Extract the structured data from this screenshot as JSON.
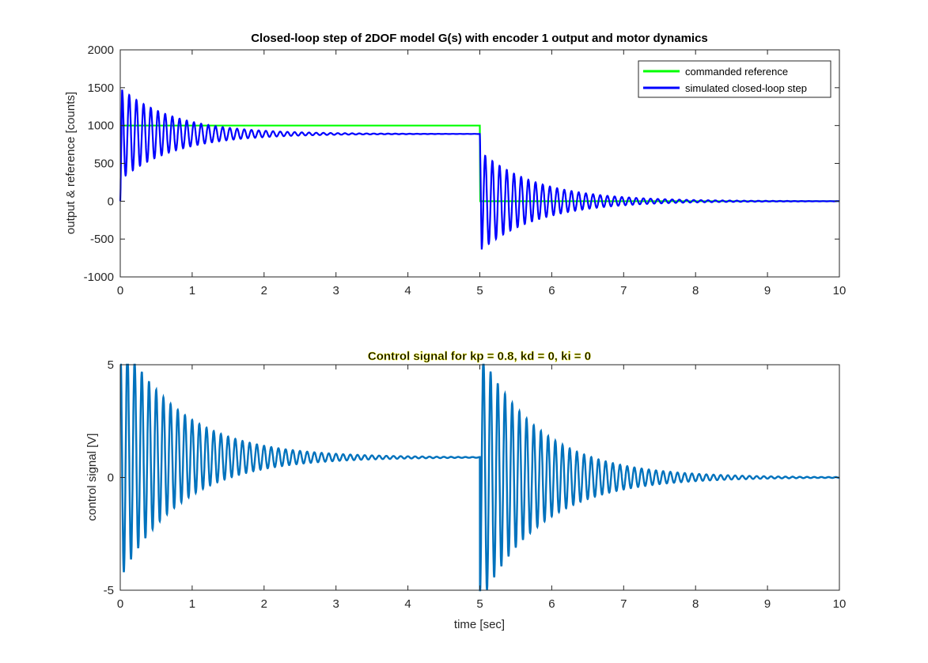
{
  "colors": {
    "reference": "#00ff00",
    "output": "#0000ff",
    "control": "#0072bd",
    "axis": "#262626",
    "legend_border": "#262626"
  },
  "chart_data": [
    {
      "type": "line",
      "title": "Closed-loop step of 2DOF model G(s) with encoder 1 output and motor dynamics",
      "xlabel": "",
      "ylabel": "output & reference [counts]",
      "xlim": [
        0,
        10
      ],
      "ylim": [
        -1000,
        2000
      ],
      "xticks": [
        "0",
        "1",
        "2",
        "3",
        "4",
        "5",
        "6",
        "7",
        "8",
        "9",
        "10"
      ],
      "yticks": [
        "-1000",
        "-500",
        "0",
        "500",
        "1000",
        "1500",
        "2000"
      ],
      "grid": false,
      "legend_position": "top-right",
      "series": [
        {
          "name": "commanded reference",
          "color": "#00ff00",
          "points": [
            [
              0,
              1000
            ],
            [
              5.0,
              1000
            ],
            [
              5.005,
              0
            ],
            [
              10,
              0
            ]
          ]
        },
        {
          "name": "simulated closed-loop step",
          "color": "#0000ff",
          "model": {
            "segments": [
              {
                "t_start": 0,
                "t_end": 5,
                "initial": 0,
                "final": 889,
                "peak": 1520,
                "trough": 305,
                "period": 0.1,
                "decay_time": 0.75
              },
              {
                "t_start": 5,
                "t_end": 10,
                "initial": 889,
                "final": 0,
                "peak_positive": 640,
                "trough": -680,
                "period": 0.1,
                "decay_time": 0.8
              }
            ]
          }
        }
      ]
    },
    {
      "type": "line",
      "title": "Control signal for kp = 0.8, kd = 0, ki = 0",
      "xlabel": "time [sec]",
      "ylabel": "control signal [V]",
      "xlim": [
        0,
        10
      ],
      "ylim": [
        -5,
        5
      ],
      "xticks": [
        "0",
        "1",
        "2",
        "3",
        "4",
        "5",
        "6",
        "7",
        "8",
        "9",
        "10"
      ],
      "yticks": [
        "-5",
        "0",
        "5"
      ],
      "grid": false,
      "series": [
        {
          "name": "",
          "color": "#0072bd",
          "model": {
            "saturation": 5,
            "segments": [
              {
                "t_start": 0,
                "t_end": 5,
                "final": 0.89,
                "amplitude": 5.4,
                "period": 0.1,
                "decay_time": 0.85
              },
              {
                "t_start": 5,
                "t_end": 10,
                "final": 0.0,
                "amplitude": 5.6,
                "period": 0.1,
                "decay_time": 0.85
              }
            ]
          }
        }
      ]
    }
  ]
}
